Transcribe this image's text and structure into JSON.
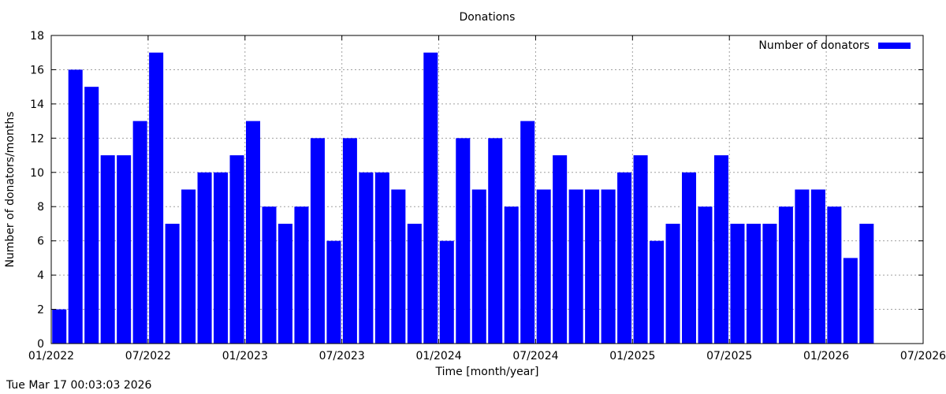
{
  "chart_data": {
    "type": "bar",
    "title": "Donations",
    "xlabel": "Time [month/year]",
    "ylabel": "Number of donators/months",
    "ylim": [
      0,
      18
    ],
    "yticks": [
      "0",
      "2",
      "4",
      "6",
      "8",
      "10",
      "12",
      "14",
      "16",
      "18"
    ],
    "xlim": [
      "2022-01",
      "2026-07"
    ],
    "xticks": [
      "01/2022",
      "07/2022",
      "01/2023",
      "07/2023",
      "01/2024",
      "07/2024",
      "01/2025",
      "07/2025",
      "01/2026",
      "07/2026"
    ],
    "grid": true,
    "legend_position": "top-right",
    "bar_color": "#0000ff",
    "series": [
      {
        "name": "Number of donators",
        "x": [
          "2022-01",
          "2022-02",
          "2022-03",
          "2022-04",
          "2022-05",
          "2022-06",
          "2022-07",
          "2022-08",
          "2022-09",
          "2022-10",
          "2022-11",
          "2022-12",
          "2023-01",
          "2023-02",
          "2023-03",
          "2023-04",
          "2023-05",
          "2023-06",
          "2023-07",
          "2023-08",
          "2023-09",
          "2023-10",
          "2023-11",
          "2023-12",
          "2024-01",
          "2024-02",
          "2024-03",
          "2024-04",
          "2024-05",
          "2024-06",
          "2024-07",
          "2024-08",
          "2024-09",
          "2024-10",
          "2024-11",
          "2024-12",
          "2025-01",
          "2025-02",
          "2025-03",
          "2025-04",
          "2025-05",
          "2025-06",
          "2025-07",
          "2025-08",
          "2025-09",
          "2025-10",
          "2025-11",
          "2025-12",
          "2026-01",
          "2026-02",
          "2026-03"
        ],
        "values": [
          2,
          16,
          15,
          11,
          11,
          13,
          17,
          7,
          9,
          10,
          10,
          11,
          13,
          8,
          7,
          8,
          12,
          6,
          12,
          10,
          10,
          9,
          7,
          17,
          6,
          12,
          9,
          12,
          8,
          13,
          9,
          11,
          9,
          9,
          9,
          10,
          11,
          6,
          7,
          10,
          8,
          11,
          7,
          7,
          7,
          8,
          9,
          9,
          8,
          5,
          7
        ]
      }
    ]
  },
  "footer": {
    "timestamp": "Tue Mar 17 00:03:03 2026"
  }
}
